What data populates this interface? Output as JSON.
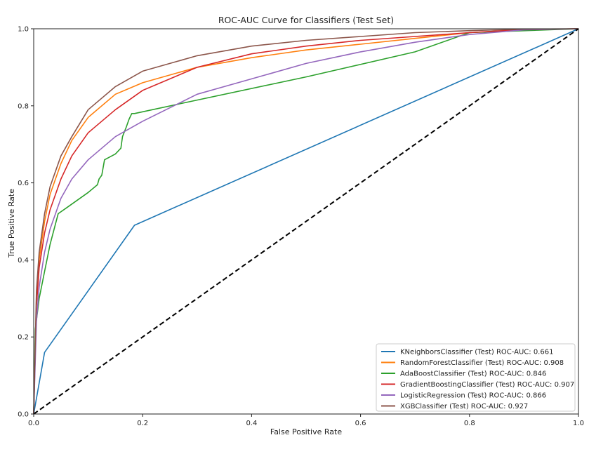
{
  "chart_data": {
    "type": "line",
    "title": "ROC-AUC Curve for Classifiers (Test Set)",
    "xlabel": "False Positive Rate",
    "ylabel": "True Positive Rate",
    "xlim": [
      0.0,
      1.0
    ],
    "ylim": [
      0.0,
      1.0
    ],
    "xticks": [
      "0.0",
      "0.2",
      "0.4",
      "0.6",
      "0.8",
      "1.0"
    ],
    "yticks": [
      "0.0",
      "0.2",
      "0.4",
      "0.6",
      "0.8",
      "1.0"
    ],
    "grid": false,
    "legend_position": "lower-right",
    "series": [
      {
        "name": "KNeighborsClassifier (Test) ROC-AUC: 0.661",
        "color": "#1f77b4",
        "x": [
          0.0,
          0.02,
          0.185,
          1.0
        ],
        "y": [
          0.0,
          0.16,
          0.49,
          1.0
        ]
      },
      {
        "name": "RandomForestClassifier (Test) ROC-AUC: 0.908",
        "color": "#ff7f0e",
        "x": [
          0.0,
          0.005,
          0.01,
          0.02,
          0.03,
          0.05,
          0.07,
          0.1,
          0.15,
          0.2,
          0.3,
          0.4,
          0.5,
          0.6,
          0.7,
          0.8,
          0.9,
          1.0
        ],
        "y": [
          0.0,
          0.3,
          0.4,
          0.5,
          0.57,
          0.65,
          0.71,
          0.77,
          0.83,
          0.86,
          0.9,
          0.925,
          0.945,
          0.96,
          0.975,
          0.99,
          0.998,
          1.0
        ]
      },
      {
        "name": "AdaBoostClassifier (Test) ROC-AUC: 0.846",
        "color": "#2ca02c",
        "x": [
          0.0,
          0.003,
          0.01,
          0.02,
          0.03,
          0.045,
          0.06,
          0.08,
          0.1,
          0.117,
          0.12,
          0.125,
          0.13,
          0.15,
          0.16,
          0.163,
          0.17,
          0.175,
          0.18,
          0.185,
          0.3,
          0.5,
          0.7,
          0.8,
          1.0
        ],
        "y": [
          0.0,
          0.22,
          0.3,
          0.37,
          0.44,
          0.52,
          0.535,
          0.555,
          0.575,
          0.595,
          0.61,
          0.62,
          0.66,
          0.675,
          0.69,
          0.72,
          0.745,
          0.765,
          0.78,
          0.78,
          0.815,
          0.875,
          0.94,
          0.99,
          1.0
        ]
      },
      {
        "name": "GradientBoostingClassifier (Test) ROC-AUC: 0.907",
        "color": "#d62728",
        "x": [
          0.0,
          0.005,
          0.01,
          0.02,
          0.03,
          0.05,
          0.07,
          0.1,
          0.15,
          0.2,
          0.3,
          0.4,
          0.5,
          0.6,
          0.7,
          0.8,
          0.9,
          1.0
        ],
        "y": [
          0.0,
          0.28,
          0.38,
          0.47,
          0.53,
          0.61,
          0.67,
          0.73,
          0.79,
          0.84,
          0.9,
          0.935,
          0.955,
          0.97,
          0.98,
          0.99,
          0.998,
          1.0
        ]
      },
      {
        "name": "LogisticRegression (Test) ROC-AUC: 0.866",
        "color": "#9467bd",
        "x": [
          0.0,
          0.005,
          0.01,
          0.02,
          0.03,
          0.05,
          0.07,
          0.1,
          0.15,
          0.2,
          0.3,
          0.4,
          0.5,
          0.6,
          0.7,
          0.8,
          0.9,
          1.0
        ],
        "y": [
          0.0,
          0.24,
          0.33,
          0.42,
          0.48,
          0.56,
          0.61,
          0.66,
          0.72,
          0.76,
          0.83,
          0.87,
          0.91,
          0.94,
          0.965,
          0.985,
          0.997,
          1.0
        ]
      },
      {
        "name": "XGBClassifier (Test) ROC-AUC: 0.927",
        "color": "#8c564b",
        "x": [
          0.0,
          0.005,
          0.01,
          0.02,
          0.03,
          0.05,
          0.07,
          0.1,
          0.15,
          0.2,
          0.3,
          0.4,
          0.5,
          0.6,
          0.7,
          0.8,
          0.9,
          1.0
        ],
        "y": [
          0.0,
          0.32,
          0.42,
          0.52,
          0.59,
          0.67,
          0.72,
          0.79,
          0.85,
          0.89,
          0.93,
          0.955,
          0.97,
          0.98,
          0.99,
          0.995,
          0.999,
          1.0
        ]
      }
    ],
    "reference_line": {
      "color": "#000000",
      "style": "dashed",
      "x": [
        0.0,
        1.0
      ],
      "y": [
        0.0,
        1.0
      ]
    }
  }
}
